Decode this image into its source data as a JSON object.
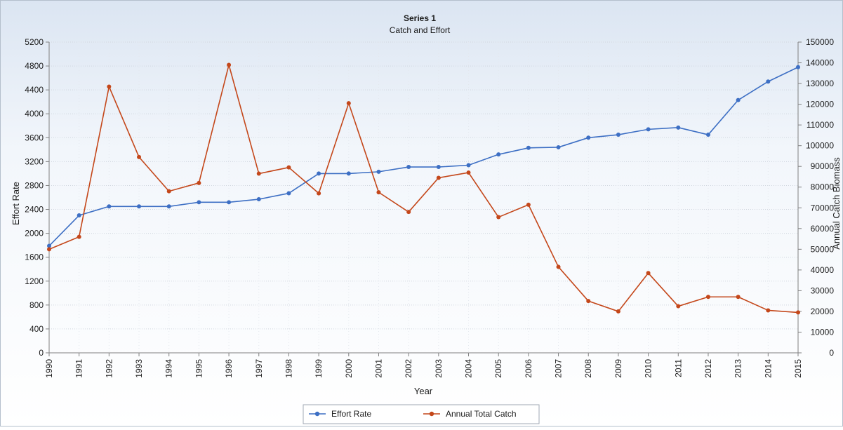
{
  "chart_data": {
    "type": "line",
    "title": "Series 1",
    "subtitle": "Catch and Effort",
    "xlabel": "Year",
    "ylabel": "Effort Rate",
    "y2label": "Annual Catch Biomass",
    "ylim": [
      0,
      5200
    ],
    "y2lim": [
      0,
      150000
    ],
    "yticks": [
      0,
      400,
      800,
      1200,
      1600,
      2000,
      2400,
      2800,
      3200,
      3600,
      4000,
      4400,
      4800,
      5200
    ],
    "y2ticks": [
      0,
      10000,
      20000,
      30000,
      40000,
      50000,
      60000,
      70000,
      80000,
      90000,
      100000,
      110000,
      120000,
      130000,
      140000,
      150000
    ],
    "x": [
      "1990",
      "1991",
      "1992",
      "1993",
      "1994",
      "1995",
      "1996",
      "1997",
      "1998",
      "1999",
      "2000",
      "2001",
      "2002",
      "2003",
      "2004",
      "2005",
      "2006",
      "2007",
      "2008",
      "2009",
      "2010",
      "2011",
      "2012",
      "2013",
      "2014",
      "2015"
    ],
    "grid": true,
    "legend_position": "bottom",
    "series": [
      {
        "name": "Effort Rate",
        "axis": "left",
        "color": "#3d6fc4",
        "values": [
          1790,
          2300,
          2450,
          2450,
          2450,
          2520,
          2520,
          2570,
          2670,
          3000,
          3000,
          3030,
          3110,
          3110,
          3140,
          3320,
          3430,
          3440,
          3600,
          3650,
          3740,
          3770,
          3650,
          4230,
          4540,
          4780
        ]
      },
      {
        "name": "Annual Total Catch",
        "axis": "right",
        "color": "#c4471a",
        "values": [
          50000,
          56000,
          128500,
          94500,
          78000,
          82000,
          139000,
          86500,
          89500,
          77000,
          120500,
          77500,
          68000,
          84500,
          87000,
          65500,
          71500,
          41500,
          25000,
          20000,
          38500,
          22500,
          27000,
          27000,
          20500,
          19500
        ]
      }
    ]
  }
}
